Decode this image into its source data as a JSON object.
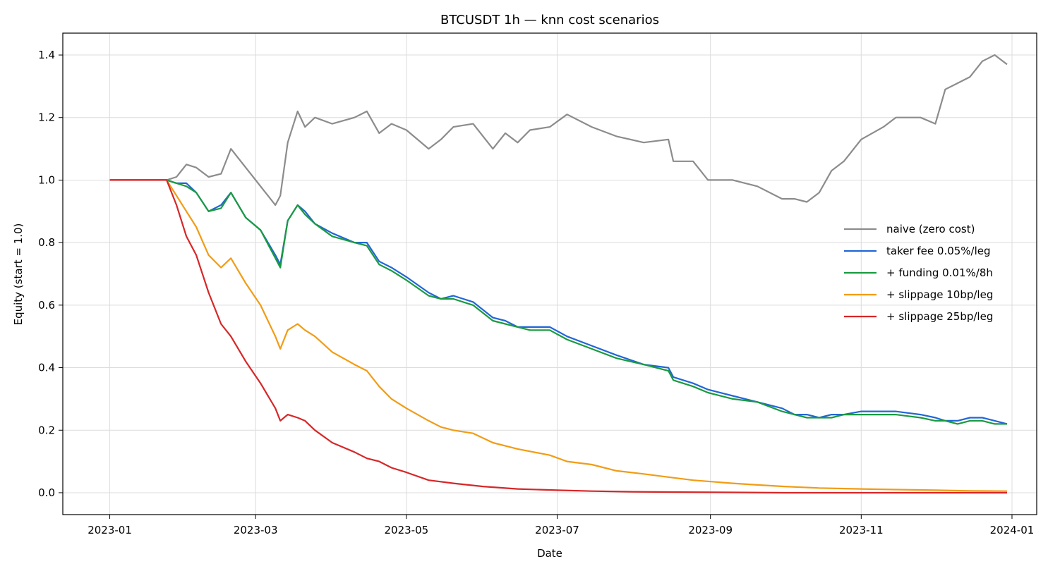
{
  "chart_data": {
    "type": "line",
    "title": "BTCUSDT 1h — knn cost scenarios",
    "xlabel": "Date",
    "ylabel": "Equity (start = 1.0)",
    "xlim": [
      "2022-12-13",
      "2024-01-11"
    ],
    "ylim": [
      -0.07,
      1.47
    ],
    "x_ticks": [
      "2023-01",
      "2023-03",
      "2023-05",
      "2023-07",
      "2023-09",
      "2023-11",
      "2024-01"
    ],
    "y_ticks": [
      "0.0",
      "0.2",
      "0.4",
      "0.6",
      "0.8",
      "1.0",
      "1.2",
      "1.4"
    ],
    "grid": true,
    "legend_position": "center-right",
    "series": [
      {
        "name": "naive (zero cost)",
        "color": "#8c8c8c",
        "x": [
          "2023-01-01",
          "2023-01-24",
          "2023-01-28",
          "2023-02-01",
          "2023-02-05",
          "2023-02-10",
          "2023-02-15",
          "2023-02-19",
          "2023-02-25",
          "2023-03-03",
          "2023-03-09",
          "2023-03-11",
          "2023-03-14",
          "2023-03-18",
          "2023-03-21",
          "2023-03-25",
          "2023-04-01",
          "2023-04-10",
          "2023-04-15",
          "2023-04-20",
          "2023-04-25",
          "2023-05-01",
          "2023-05-10",
          "2023-05-15",
          "2023-05-20",
          "2023-05-28",
          "2023-06-05",
          "2023-06-10",
          "2023-06-15",
          "2023-06-20",
          "2023-06-28",
          "2023-07-05",
          "2023-07-15",
          "2023-07-25",
          "2023-08-05",
          "2023-08-15",
          "2023-08-17",
          "2023-08-25",
          "2023-08-31",
          "2023-09-10",
          "2023-09-20",
          "2023-09-30",
          "2023-10-05",
          "2023-10-10",
          "2023-10-15",
          "2023-10-20",
          "2023-10-25",
          "2023-11-01",
          "2023-11-10",
          "2023-11-15",
          "2023-11-25",
          "2023-12-01",
          "2023-12-05",
          "2023-12-10",
          "2023-12-15",
          "2023-12-20",
          "2023-12-25",
          "2023-12-30"
        ],
        "values": [
          1.0,
          1.0,
          1.01,
          1.05,
          1.04,
          1.01,
          1.02,
          1.1,
          1.04,
          0.98,
          0.92,
          0.95,
          1.12,
          1.22,
          1.17,
          1.2,
          1.18,
          1.2,
          1.22,
          1.15,
          1.18,
          1.16,
          1.1,
          1.13,
          1.17,
          1.18,
          1.1,
          1.15,
          1.12,
          1.16,
          1.17,
          1.21,
          1.17,
          1.14,
          1.12,
          1.13,
          1.06,
          1.06,
          1.0,
          1.0,
          0.98,
          0.94,
          0.94,
          0.93,
          0.96,
          1.03,
          1.06,
          1.13,
          1.17,
          1.2,
          1.2,
          1.18,
          1.29,
          1.31,
          1.33,
          1.38,
          1.4,
          1.37
        ]
      },
      {
        "name": "taker fee 0.05%/leg",
        "color": "#2166d6",
        "x": [
          "2023-01-01",
          "2023-01-24",
          "2023-01-28",
          "2023-02-01",
          "2023-02-05",
          "2023-02-10",
          "2023-02-15",
          "2023-02-19",
          "2023-02-25",
          "2023-03-03",
          "2023-03-09",
          "2023-03-11",
          "2023-03-14",
          "2023-03-18",
          "2023-03-21",
          "2023-03-25",
          "2023-04-01",
          "2023-04-10",
          "2023-04-15",
          "2023-04-20",
          "2023-04-25",
          "2023-05-01",
          "2023-05-10",
          "2023-05-15",
          "2023-05-20",
          "2023-05-28",
          "2023-06-05",
          "2023-06-10",
          "2023-06-15",
          "2023-06-20",
          "2023-06-28",
          "2023-07-05",
          "2023-07-15",
          "2023-07-25",
          "2023-08-05",
          "2023-08-15",
          "2023-08-17",
          "2023-08-25",
          "2023-08-31",
          "2023-09-10",
          "2023-09-20",
          "2023-09-30",
          "2023-10-05",
          "2023-10-10",
          "2023-10-15",
          "2023-10-20",
          "2023-10-25",
          "2023-11-01",
          "2023-11-10",
          "2023-11-15",
          "2023-11-25",
          "2023-12-01",
          "2023-12-05",
          "2023-12-10",
          "2023-12-15",
          "2023-12-20",
          "2023-12-25",
          "2023-12-30"
        ],
        "values": [
          1.0,
          1.0,
          0.99,
          0.99,
          0.96,
          0.9,
          0.92,
          0.96,
          0.88,
          0.84,
          0.76,
          0.73,
          0.87,
          0.92,
          0.9,
          0.86,
          0.83,
          0.8,
          0.8,
          0.74,
          0.72,
          0.69,
          0.64,
          0.62,
          0.63,
          0.61,
          0.56,
          0.55,
          0.53,
          0.53,
          0.53,
          0.5,
          0.47,
          0.44,
          0.41,
          0.4,
          0.37,
          0.35,
          0.33,
          0.31,
          0.29,
          0.27,
          0.25,
          0.25,
          0.24,
          0.25,
          0.25,
          0.26,
          0.26,
          0.26,
          0.25,
          0.24,
          0.23,
          0.23,
          0.24,
          0.24,
          0.23,
          0.22
        ]
      },
      {
        "name": "+ funding 0.01%/8h",
        "color": "#1a9a41",
        "x": [
          "2023-01-01",
          "2023-01-24",
          "2023-01-28",
          "2023-02-01",
          "2023-02-05",
          "2023-02-10",
          "2023-02-15",
          "2023-02-19",
          "2023-02-25",
          "2023-03-03",
          "2023-03-09",
          "2023-03-11",
          "2023-03-14",
          "2023-03-18",
          "2023-03-21",
          "2023-03-25",
          "2023-04-01",
          "2023-04-10",
          "2023-04-15",
          "2023-04-20",
          "2023-04-25",
          "2023-05-01",
          "2023-05-10",
          "2023-05-15",
          "2023-05-20",
          "2023-05-28",
          "2023-06-05",
          "2023-06-10",
          "2023-06-15",
          "2023-06-20",
          "2023-06-28",
          "2023-07-05",
          "2023-07-15",
          "2023-07-25",
          "2023-08-05",
          "2023-08-15",
          "2023-08-17",
          "2023-08-25",
          "2023-08-31",
          "2023-09-10",
          "2023-09-20",
          "2023-09-30",
          "2023-10-05",
          "2023-10-10",
          "2023-10-15",
          "2023-10-20",
          "2023-10-25",
          "2023-11-01",
          "2023-11-10",
          "2023-11-15",
          "2023-11-25",
          "2023-12-01",
          "2023-12-05",
          "2023-12-10",
          "2023-12-15",
          "2023-12-20",
          "2023-12-25",
          "2023-12-30"
        ],
        "values": [
          1.0,
          1.0,
          0.99,
          0.98,
          0.96,
          0.9,
          0.91,
          0.96,
          0.88,
          0.84,
          0.75,
          0.72,
          0.87,
          0.92,
          0.89,
          0.86,
          0.82,
          0.8,
          0.79,
          0.73,
          0.71,
          0.68,
          0.63,
          0.62,
          0.62,
          0.6,
          0.55,
          0.54,
          0.53,
          0.52,
          0.52,
          0.49,
          0.46,
          0.43,
          0.41,
          0.39,
          0.36,
          0.34,
          0.32,
          0.3,
          0.29,
          0.26,
          0.25,
          0.24,
          0.24,
          0.24,
          0.25,
          0.25,
          0.25,
          0.25,
          0.24,
          0.23,
          0.23,
          0.22,
          0.23,
          0.23,
          0.22,
          0.22
        ]
      },
      {
        "name": "+ slippage 10bp/leg",
        "color": "#f19c14",
        "x": [
          "2023-01-01",
          "2023-01-24",
          "2023-01-28",
          "2023-02-01",
          "2023-02-05",
          "2023-02-10",
          "2023-02-15",
          "2023-02-19",
          "2023-02-25",
          "2023-03-03",
          "2023-03-09",
          "2023-03-11",
          "2023-03-14",
          "2023-03-18",
          "2023-03-21",
          "2023-03-25",
          "2023-04-01",
          "2023-04-10",
          "2023-04-15",
          "2023-04-20",
          "2023-04-25",
          "2023-05-01",
          "2023-05-10",
          "2023-05-15",
          "2023-05-20",
          "2023-05-28",
          "2023-06-05",
          "2023-06-15",
          "2023-06-28",
          "2023-07-05",
          "2023-07-15",
          "2023-07-25",
          "2023-08-05",
          "2023-08-15",
          "2023-08-25",
          "2023-09-10",
          "2023-09-20",
          "2023-10-01",
          "2023-10-15",
          "2023-11-01",
          "2023-11-15",
          "2023-12-01",
          "2023-12-15",
          "2023-12-30"
        ],
        "values": [
          1.0,
          1.0,
          0.95,
          0.9,
          0.85,
          0.76,
          0.72,
          0.75,
          0.67,
          0.6,
          0.5,
          0.46,
          0.52,
          0.54,
          0.52,
          0.5,
          0.45,
          0.41,
          0.39,
          0.34,
          0.3,
          0.27,
          0.23,
          0.21,
          0.2,
          0.19,
          0.16,
          0.14,
          0.12,
          0.1,
          0.09,
          0.07,
          0.06,
          0.05,
          0.04,
          0.03,
          0.025,
          0.02,
          0.015,
          0.012,
          0.01,
          0.008,
          0.006,
          0.005
        ]
      },
      {
        "name": "+ slippage 25bp/leg",
        "color": "#d62728",
        "x": [
          "2023-01-01",
          "2023-01-24",
          "2023-01-28",
          "2023-02-01",
          "2023-02-05",
          "2023-02-10",
          "2023-02-15",
          "2023-02-19",
          "2023-02-25",
          "2023-03-03",
          "2023-03-09",
          "2023-03-11",
          "2023-03-14",
          "2023-03-18",
          "2023-03-21",
          "2023-03-25",
          "2023-04-01",
          "2023-04-10",
          "2023-04-15",
          "2023-04-20",
          "2023-04-25",
          "2023-05-01",
          "2023-05-10",
          "2023-05-20",
          "2023-06-01",
          "2023-06-15",
          "2023-07-01",
          "2023-07-15",
          "2023-08-01",
          "2023-08-20",
          "2023-09-10",
          "2023-10-01",
          "2023-11-01",
          "2023-12-01",
          "2023-12-30"
        ],
        "values": [
          1.0,
          1.0,
          0.92,
          0.82,
          0.76,
          0.64,
          0.54,
          0.5,
          0.42,
          0.35,
          0.27,
          0.23,
          0.25,
          0.24,
          0.23,
          0.2,
          0.16,
          0.13,
          0.11,
          0.1,
          0.08,
          0.065,
          0.04,
          0.03,
          0.02,
          0.012,
          0.008,
          0.005,
          0.003,
          0.002,
          0.001,
          0.0,
          0.0,
          0.0,
          0.0
        ]
      }
    ]
  }
}
